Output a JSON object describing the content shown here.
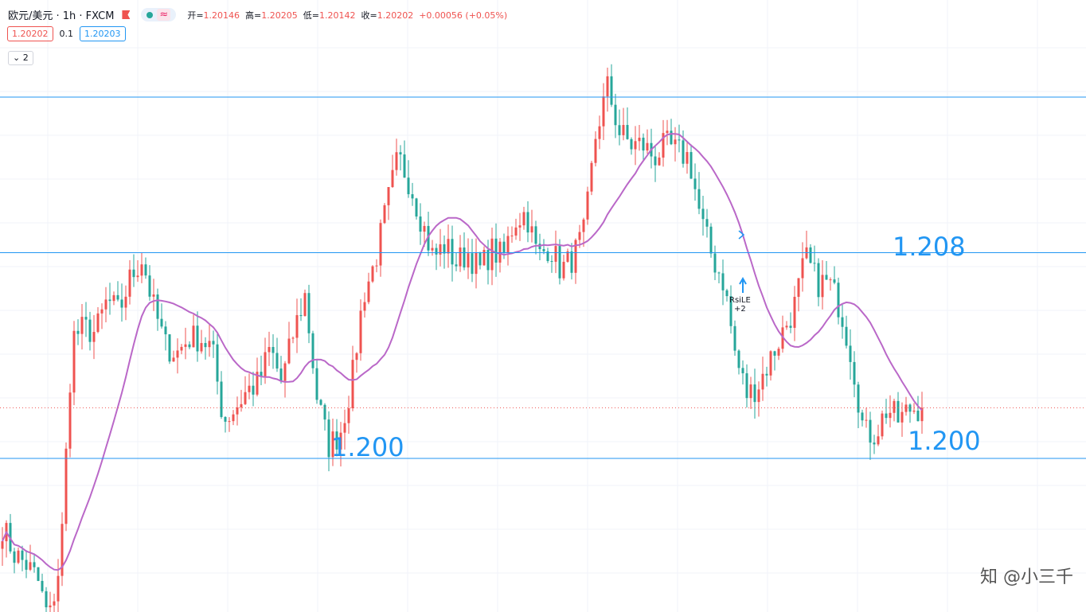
{
  "header": {
    "symbol": "欧元/美元 · 1h · FXCM",
    "indicator_glyph": "≈",
    "ohlc": [
      {
        "label": "开=",
        "value": "1.20146"
      },
      {
        "label": "高=",
        "value": "1.20205"
      },
      {
        "label": "低=",
        "value": "1.20142"
      },
      {
        "label": "收=",
        "value": "1.20202"
      }
    ],
    "change": "+0.00056 (+0.05%)"
  },
  "trade": {
    "sell": "1.20202",
    "spread": "0.1",
    "buy": "1.20203"
  },
  "collapse": {
    "count": "2"
  },
  "levels": [
    {
      "label": "1.208",
      "price": 1.2082
    },
    {
      "label": "1.200",
      "price": 1.2
    },
    {
      "label": "1.200",
      "price": 1.2
    }
  ],
  "strategy_marker": {
    "name": "RsiLE",
    "qty": "+2"
  },
  "watermark": "知 @小三千",
  "colors": {
    "up": "#ef5350",
    "down": "#26a69a",
    "ma": "#ba68c8",
    "level": "#2196f3",
    "last": "#ef5350"
  },
  "chart_data": {
    "type": "candlestick",
    "y_range": [
      1.1948,
      1.2157
    ],
    "top_level": 1.2144,
    "last_price": 1.20202,
    "ma_period": 20,
    "anchors": [
      1.1973,
      1.1962,
      1.1958,
      1.1952,
      1.1935,
      1.196,
      1.2048,
      1.2052,
      1.205,
      1.2063,
      1.2058,
      1.2072,
      1.208,
      1.206,
      1.2045,
      1.2042,
      1.2048,
      1.2048,
      1.2044,
      1.2015,
      1.202,
      1.2027,
      1.203,
      1.2044,
      1.203,
      1.205,
      1.2065,
      1.2025,
      1.2005,
      1.201,
      1.203,
      1.2065,
      1.2078,
      1.21,
      1.212,
      1.211,
      1.2095,
      1.208,
      1.2085,
      1.2078,
      1.2082,
      1.2075,
      1.2083,
      1.208,
      1.2095,
      1.2098,
      1.208,
      1.2085,
      1.2075,
      1.208,
      1.209,
      1.213,
      1.2148,
      1.213,
      1.2125,
      1.2125,
      1.212,
      1.2125,
      1.2122,
      1.212,
      1.2095,
      1.208,
      1.207,
      1.204,
      1.2025,
      1.203,
      1.204,
      1.205,
      1.206,
      1.208,
      1.207,
      1.207,
      1.206,
      1.204,
      1.201,
      1.201,
      1.202,
      1.2015,
      1.202,
      1.20202
    ]
  }
}
